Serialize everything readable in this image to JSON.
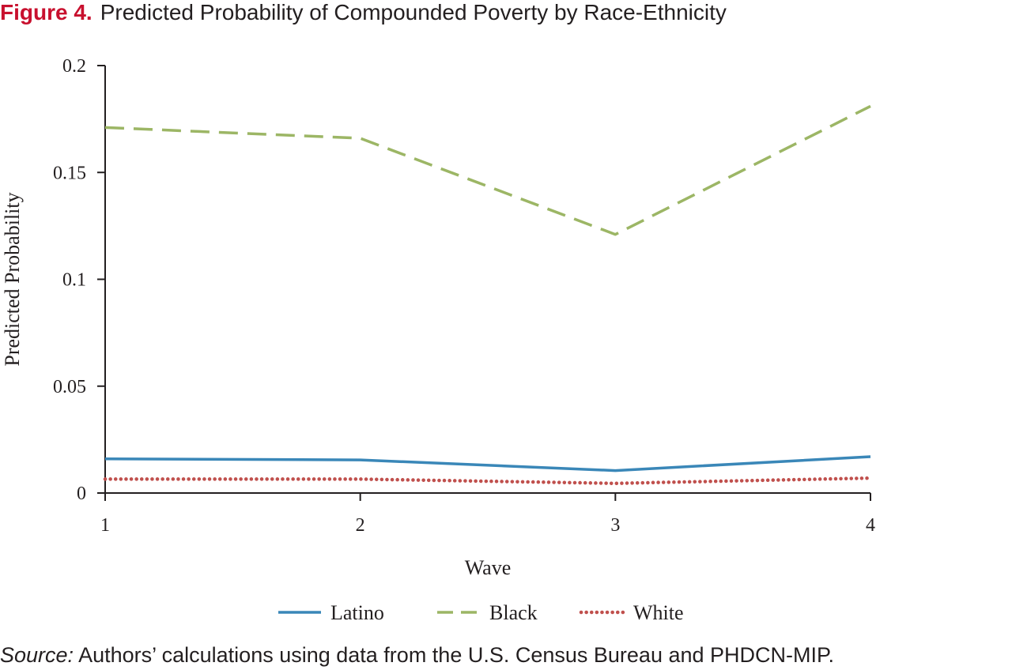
{
  "figure": {
    "label": "Figure 4.",
    "title": "Predicted Probability of Compounded Poverty by Race-Ethnicity"
  },
  "source": {
    "label": "Source:",
    "text": "Authors’ calculations using data from the U.S. Census Bureau and PHDCN-MIP."
  },
  "chart_data": {
    "type": "line",
    "title": "Predicted Probability of Compounded Poverty by Race-Ethnicity",
    "xlabel": "Wave",
    "ylabel": "Predicted Probability",
    "x": [
      1,
      2,
      3,
      4
    ],
    "x_tick_labels": [
      "1",
      "2",
      "3",
      "4"
    ],
    "y_tick_values": [
      0,
      0.05,
      0.1,
      0.15,
      0.2
    ],
    "y_tick_labels": [
      "0",
      "0.05",
      "0.1",
      "0.15",
      "0.2"
    ],
    "ylim": [
      0,
      0.2
    ],
    "xlim": [
      1,
      4
    ],
    "grid": false,
    "legend_position": "bottom",
    "series": [
      {
        "name": "Latino",
        "values": [
          0.016,
          0.0155,
          0.0105,
          0.017
        ],
        "color": "#3a87b8",
        "style": "solid"
      },
      {
        "name": "Black",
        "values": [
          0.171,
          0.166,
          0.121,
          0.181
        ],
        "color": "#9cb665",
        "style": "dashed"
      },
      {
        "name": "White",
        "values": [
          0.0065,
          0.0065,
          0.0045,
          0.007
        ],
        "color": "#c0504d",
        "style": "dotted"
      }
    ]
  }
}
